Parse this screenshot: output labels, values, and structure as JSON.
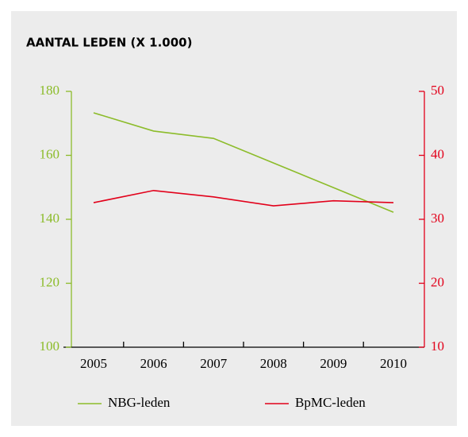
{
  "chart_data": {
    "type": "line",
    "title": "AANTAL LEDEN (X 1.000)",
    "categories": [
      "2005",
      "2006",
      "2007",
      "2008",
      "2009",
      "2010"
    ],
    "series": [
      {
        "name": "NBG-leden",
        "color": "#8cbc2a",
        "values": [
          173.3,
          167.6,
          165.3,
          157.6,
          149.9,
          142.2
        ]
      },
      {
        "name": "BpMC-leden",
        "color": "#e2001a",
        "axis": "y2",
        "values": [
          32.6,
          34.5,
          33.5,
          32.1,
          32.9,
          32.6
        ]
      }
    ],
    "ylim": [
      100,
      180
    ],
    "yticks": [
      100,
      120,
      140,
      160,
      180
    ],
    "y2lim": [
      10,
      50
    ],
    "y2ticks": [
      10,
      20,
      30,
      40,
      50
    ],
    "legend": "bottom"
  }
}
